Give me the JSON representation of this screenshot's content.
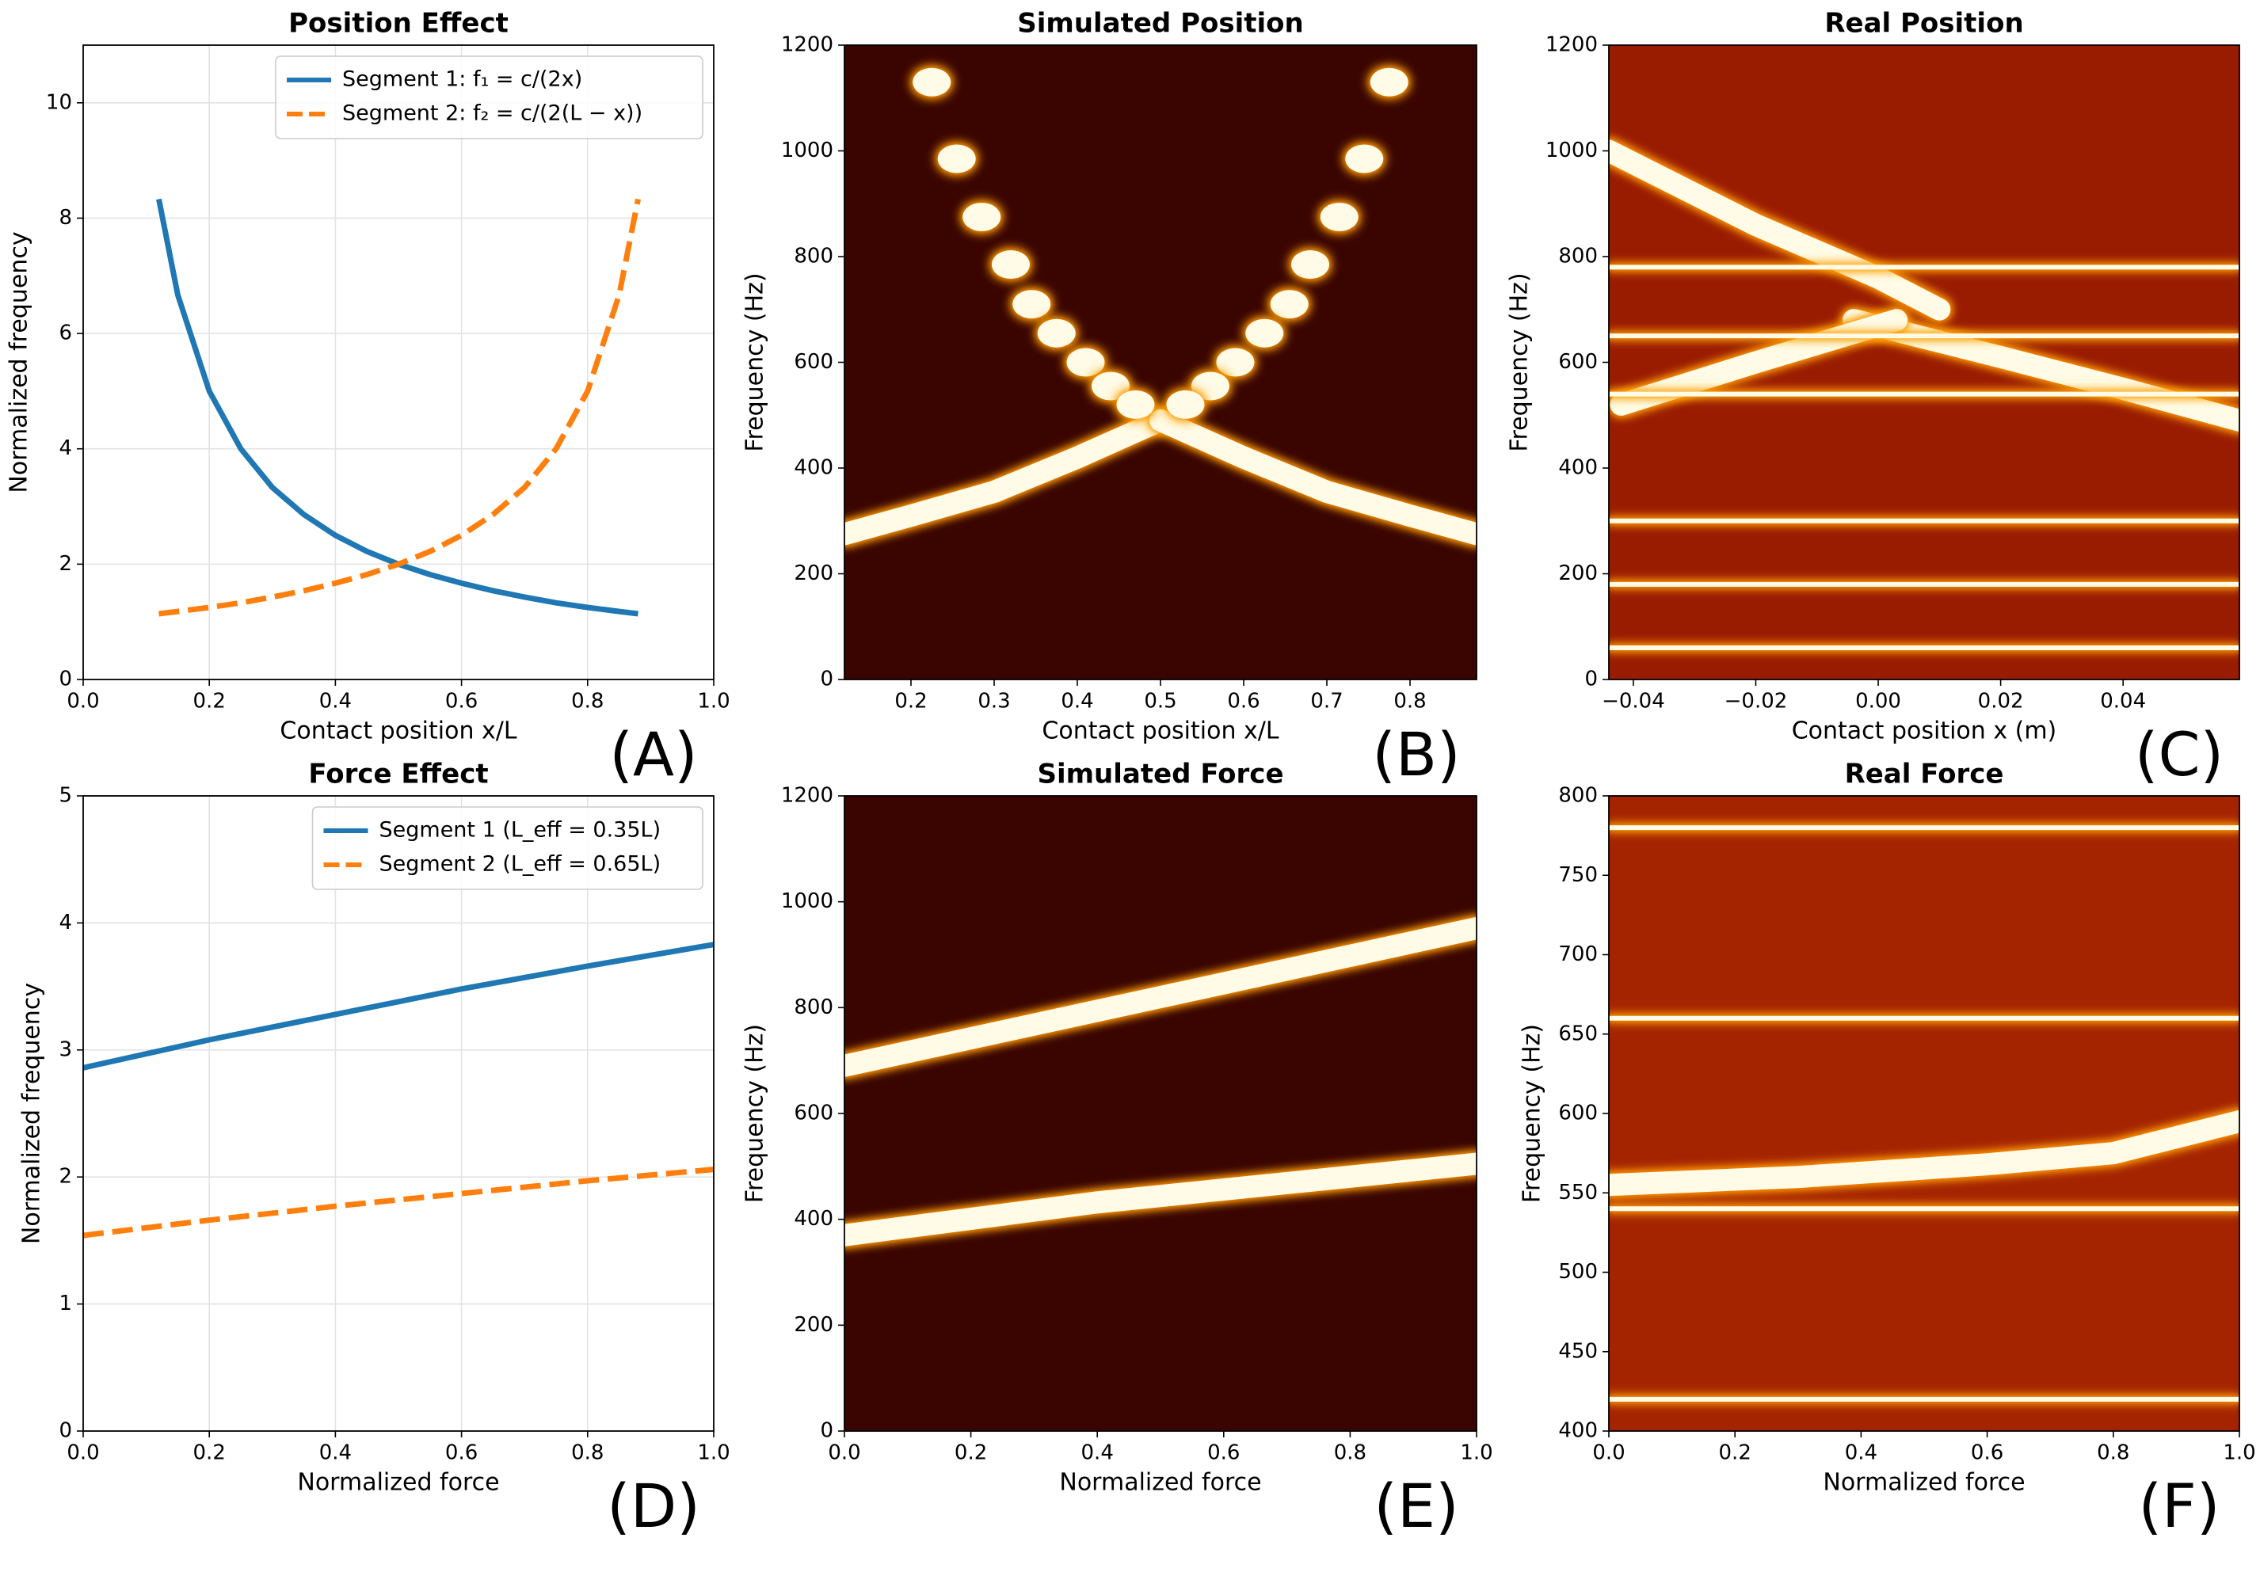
{
  "chart_data": [
    {
      "type": "line",
      "title": "Position Effect",
      "xlabel": "Contact position x/L",
      "ylabel": "Normalized frequency",
      "panel_label": "(A)",
      "x": [
        0.12,
        0.15,
        0.2,
        0.25,
        0.3,
        0.35,
        0.4,
        0.45,
        0.5,
        0.55,
        0.6,
        0.65,
        0.7,
        0.75,
        0.8,
        0.85,
        0.88
      ],
      "series": [
        {
          "name": "Segment 1: f₁ = c/(2x)",
          "color": "#1f77b4",
          "linestyle": "solid",
          "values": [
            8.33,
            6.67,
            5,
            4,
            3.33,
            2.86,
            2.5,
            2.22,
            2,
            1.82,
            1.67,
            1.54,
            1.43,
            1.33,
            1.25,
            1.18,
            1.14
          ]
        },
        {
          "name": "Segment 2: f₂ = c/(2(L − x))",
          "color": "#ff7f0e",
          "linestyle": "dashed",
          "values": [
            1.14,
            1.18,
            1.25,
            1.33,
            1.43,
            1.54,
            1.67,
            1.82,
            2,
            2.22,
            2.5,
            2.86,
            3.33,
            4,
            5,
            6.67,
            8.33
          ]
        }
      ],
      "xlim": [
        0,
        1
      ],
      "xticks": [
        {
          "value": 0,
          "label": "0.0"
        },
        0.2,
        0.4,
        0.6,
        0.8,
        {
          "value": 1,
          "label": "1.0"
        }
      ],
      "ylim": [
        0,
        11
      ],
      "yticks": [
        0,
        2,
        4,
        6,
        8,
        10
      ],
      "grid": true,
      "legend": "upper right"
    },
    {
      "type": "heatmap",
      "title": "Simulated Position",
      "xlabel": "Contact position x/L",
      "ylabel": "Frequency (Hz)",
      "panel_label": "(B)",
      "background": "#3a0500",
      "series": [
        {
          "style": "ridge",
          "x": [
            0.12,
            0.2,
            0.3,
            0.4,
            0.5
          ],
          "values": [
            275,
            310,
            355,
            420,
            490
          ]
        },
        {
          "style": "ridge",
          "x": [
            0.5,
            0.6,
            0.7,
            0.8,
            0.88
          ],
          "values": [
            490,
            420,
            355,
            310,
            275
          ]
        },
        {
          "style": "dots",
          "x": [
            0.225,
            0.255,
            0.285,
            0.32,
            0.345,
            0.375,
            0.41,
            0.44,
            0.47
          ],
          "values": [
            1130,
            985,
            875,
            785,
            710,
            655,
            600,
            555,
            520
          ]
        },
        {
          "style": "dots",
          "x": [
            0.775,
            0.745,
            0.715,
            0.68,
            0.655,
            0.625,
            0.59,
            0.56,
            0.53
          ],
          "values": [
            1130,
            985,
            875,
            785,
            710,
            655,
            600,
            555,
            520
          ]
        }
      ],
      "xlim": [
        0.12,
        0.88
      ],
      "xticks": [
        0.2,
        0.3,
        0.4,
        0.5,
        0.6,
        0.7,
        0.8
      ],
      "ylim": [
        0,
        1200
      ],
      "yticks": [
        0,
        200,
        400,
        600,
        800,
        1000,
        1200
      ]
    },
    {
      "type": "heatmap",
      "title": "Real Position",
      "xlabel": "Contact position x (m)",
      "ylabel": "Frequency (Hz)",
      "panel_label": "(C)",
      "background": "#9a1c00",
      "series": [
        {
          "style": "ridge",
          "x": [
            -0.004,
            0.02,
            0.04,
            0.059
          ],
          "values": [
            680,
            610,
            550,
            490
          ]
        },
        {
          "style": "ridge",
          "x": [
            -0.042,
            -0.02,
            0.003
          ],
          "values": [
            520,
            600,
            680
          ]
        },
        {
          "style": "ridge",
          "x": [
            -0.044,
            -0.02,
            0.0,
            0.01
          ],
          "values": [
            1000,
            860,
            760,
            700
          ]
        },
        {
          "style": "line",
          "x": [
            -0.044,
            0.059
          ],
          "values": [
            60,
            60
          ]
        },
        {
          "style": "line",
          "x": [
            -0.044,
            0.059
          ],
          "values": [
            180,
            180
          ]
        },
        {
          "style": "line",
          "x": [
            -0.044,
            0.059
          ],
          "values": [
            300,
            300
          ]
        },
        {
          "style": "line",
          "x": [
            -0.044,
            0.059
          ],
          "values": [
            540,
            540
          ]
        },
        {
          "style": "line",
          "x": [
            -0.044,
            0.059
          ],
          "values": [
            650,
            650
          ]
        },
        {
          "style": "line",
          "x": [
            -0.044,
            0.059
          ],
          "values": [
            780,
            780
          ]
        }
      ],
      "xlim": [
        -0.044,
        0.059
      ],
      "xticks": [
        {
          "value": -0.04,
          "label": "−0.04"
        },
        {
          "value": -0.02,
          "label": "−0.02"
        },
        {
          "value": 0,
          "label": "0.00"
        },
        0.02,
        0.04
      ],
      "ylim": [
        0,
        1200
      ],
      "yticks": [
        0,
        200,
        400,
        600,
        800,
        1000,
        1200
      ]
    },
    {
      "type": "line",
      "title": "Force Effect",
      "xlabel": "Normalized force",
      "ylabel": "Normalized frequency",
      "panel_label": "(D)",
      "x": [
        0,
        0.2,
        0.4,
        0.6,
        0.8,
        1
      ],
      "series": [
        {
          "name": "Segment 1 (L_eff = 0.35L)",
          "color": "#1f77b4",
          "linestyle": "solid",
          "values": [
            2.86,
            3.08,
            3.28,
            3.48,
            3.66,
            3.83
          ]
        },
        {
          "name": "Segment 2 (L_eff = 0.65L)",
          "color": "#ff7f0e",
          "linestyle": "dashed",
          "values": [
            1.54,
            1.66,
            1.77,
            1.87,
            1.97,
            2.06
          ]
        }
      ],
      "xlim": [
        0,
        1
      ],
      "xticks": [
        {
          "value": 0,
          "label": "0.0"
        },
        0.2,
        0.4,
        0.6,
        0.8,
        {
          "value": 1,
          "label": "1.0"
        }
      ],
      "ylim": [
        0,
        5
      ],
      "yticks": [
        0,
        1,
        2,
        3,
        4,
        5
      ],
      "grid": true,
      "legend": "upper right"
    },
    {
      "type": "heatmap",
      "title": "Simulated Force",
      "xlabel": "Normalized force",
      "ylabel": "Frequency (Hz)",
      "panel_label": "(E)",
      "background": "#3a0500",
      "series": [
        {
          "style": "ridge",
          "x": [
            0,
            0.5,
            1
          ],
          "values": [
            690,
            820,
            950
          ]
        },
        {
          "style": "ridge",
          "x": [
            0,
            0.4,
            1
          ],
          "values": [
            370,
            432,
            505
          ]
        }
      ],
      "xlim": [
        0,
        1
      ],
      "xticks": [
        {
          "value": 0,
          "label": "0.0"
        },
        0.2,
        0.4,
        0.6,
        0.8,
        {
          "value": 1,
          "label": "1.0"
        }
      ],
      "ylim": [
        0,
        1200
      ],
      "yticks": [
        0,
        200,
        400,
        600,
        800,
        1000,
        1200
      ]
    },
    {
      "type": "heatmap",
      "title": "Real Force",
      "xlabel": "Normalized force",
      "ylabel": "Frequency (Hz)",
      "panel_label": "(F)",
      "background": "#a52400",
      "series": [
        {
          "style": "ridge",
          "x": [
            0,
            0.3,
            0.6,
            0.8,
            1
          ],
          "values": [
            555,
            560,
            568,
            575,
            595
          ]
        },
        {
          "style": "line",
          "x": [
            0,
            1
          ],
          "values": [
            420,
            420
          ]
        },
        {
          "style": "line",
          "x": [
            0,
            1
          ],
          "values": [
            540,
            540
          ]
        },
        {
          "style": "line",
          "x": [
            0,
            1
          ],
          "values": [
            660,
            660
          ]
        },
        {
          "style": "line",
          "x": [
            0,
            1
          ],
          "values": [
            780,
            780
          ]
        }
      ],
      "xlim": [
        0,
        1
      ],
      "xticks": [
        {
          "value": 0,
          "label": "0.0"
        },
        0.2,
        0.4,
        0.6,
        0.8,
        {
          "value": 1,
          "label": "1.0"
        }
      ],
      "ylim": [
        400,
        800
      ],
      "yticks": [
        400,
        450,
        500,
        550,
        600,
        650,
        700,
        750,
        800
      ]
    }
  ]
}
